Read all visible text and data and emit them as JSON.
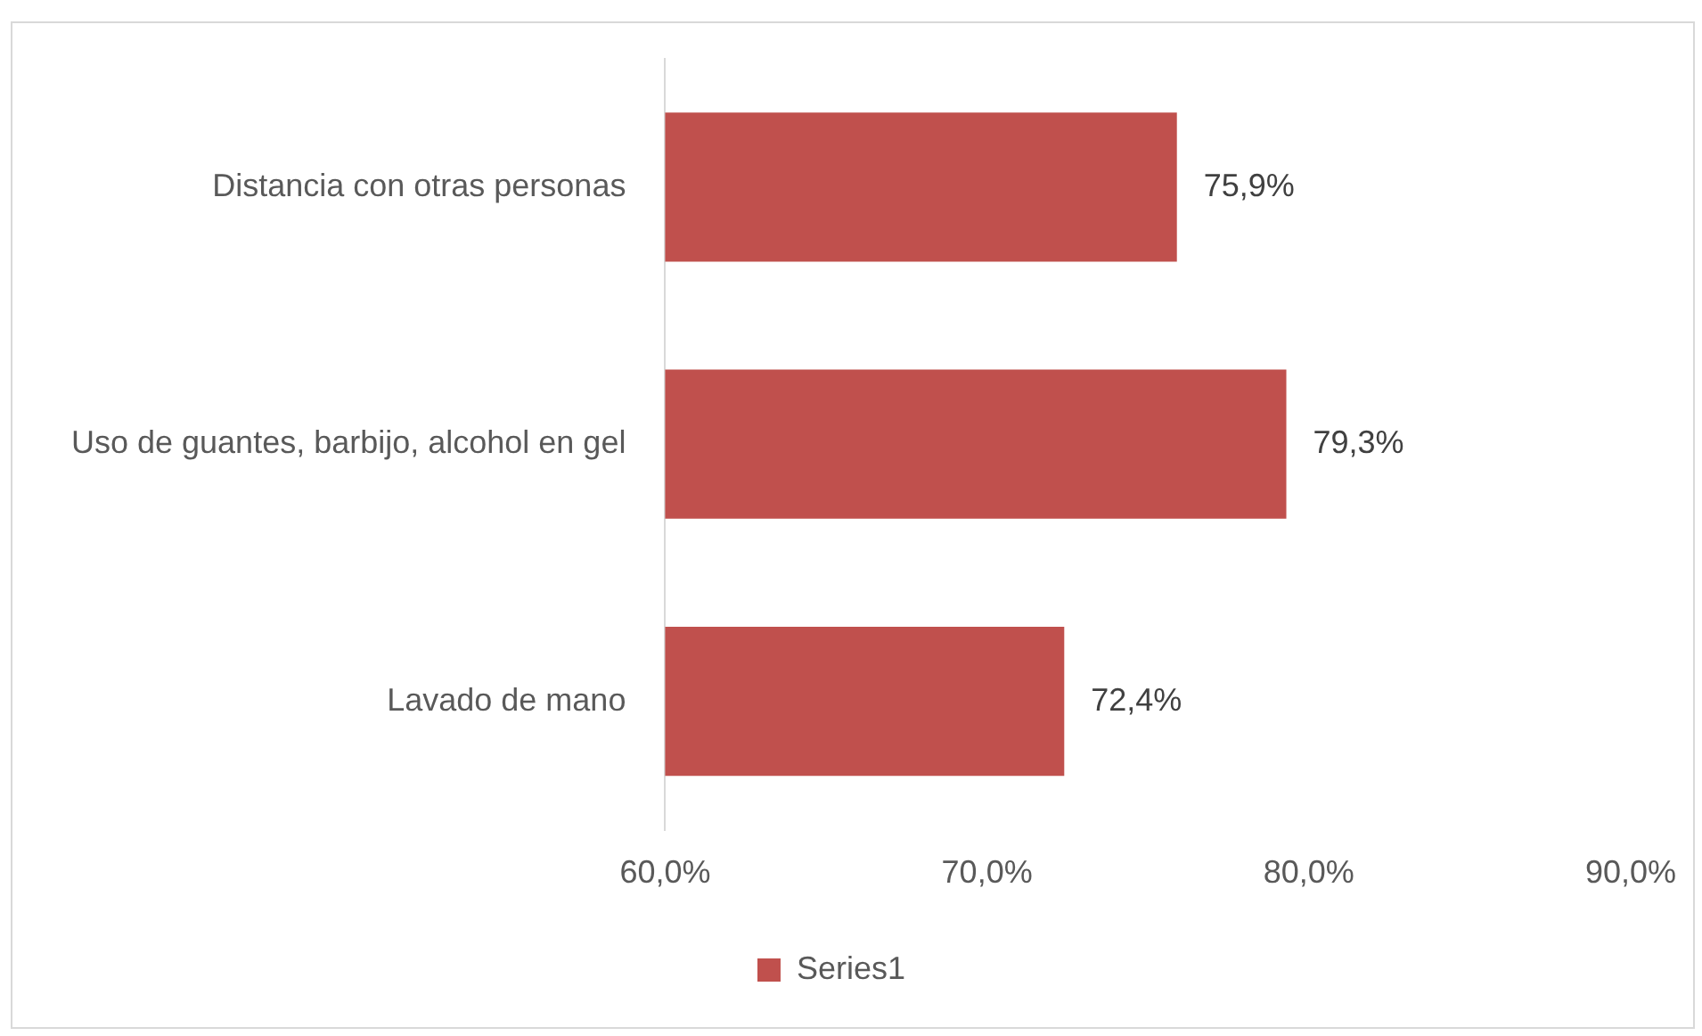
{
  "chart_data": {
    "type": "bar",
    "orientation": "horizontal",
    "categories": [
      "Distancia con otras personas",
      "Uso de guantes, barbijo, alcohol en gel",
      "Lavado de mano"
    ],
    "series": [
      {
        "name": "Series1",
        "color": "#c0504d",
        "values": [
          75.9,
          79.3,
          72.4
        ],
        "value_labels": [
          "75,9%",
          "79,3%",
          "72,4%"
        ]
      }
    ],
    "xlim": [
      60,
      90
    ],
    "xticks": [
      {
        "value": 60,
        "label": "60,0%"
      },
      {
        "value": 70,
        "label": "70,0%"
      },
      {
        "value": 80,
        "label": "80,0%"
      },
      {
        "value": 90,
        "label": "90,0%"
      }
    ],
    "grid": false,
    "legend": "bottom"
  }
}
